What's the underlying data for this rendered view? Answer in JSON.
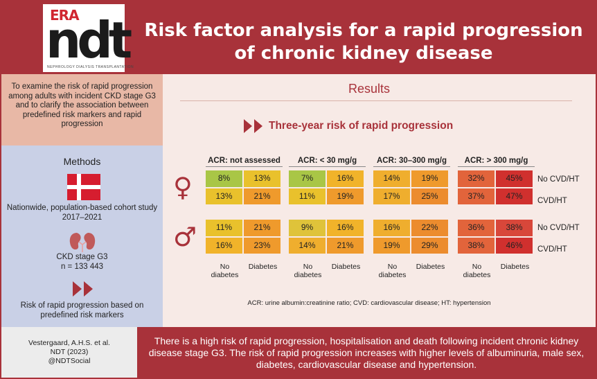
{
  "logo": {
    "era": "ERA",
    "ndt": "ndt",
    "subtitle": "NEPHROLOGY DIALYSIS TRANSPLANTATION"
  },
  "title_line1": "Risk factor analysis for a rapid progression",
  "title_line2": "of chronic kidney disease",
  "aim": "To examine the risk of rapid progression among adults with incident CKD stage G3 and to clarify the association between predefined risk markers and rapid progression",
  "methods": {
    "title": "Methods",
    "cohort": "Nationwide, population-based cohort study 2017–2021",
    "ckd": "CKD stage G3",
    "n": "n = 133 443",
    "outcome": "Risk of rapid progression based on predefined risk markers"
  },
  "results": {
    "title": "Results",
    "subtitle": "Three-year risk of rapid progression",
    "acr_groups": [
      "ACR: not assessed",
      "ACR: < 30 mg/g",
      "ACR: 30–300 mg/g",
      "ACR: > 300 mg/g"
    ],
    "row_labels": [
      "No CVD/HT",
      "CVD/HT",
      "No CVD/HT",
      "CVD/HT"
    ],
    "col_labels": [
      "No diabetes",
      "Diabetes"
    ],
    "female_symbol": "♀",
    "male_symbol": "♂",
    "female": [
      [
        [
          "8%",
          "#a9c646"
        ],
        [
          "13%",
          "#e9c12c"
        ],
        [
          "7%",
          "#a9c646"
        ],
        [
          "16%",
          "#f1b32a"
        ],
        [
          "14%",
          "#efae2e"
        ],
        [
          "19%",
          "#ef9a2c"
        ],
        [
          "32%",
          "#e2643b"
        ],
        [
          "45%",
          "#d0302e"
        ]
      ],
      [
        [
          "13%",
          "#e9c12c"
        ],
        [
          "21%",
          "#ef9a2c"
        ],
        [
          "11%",
          "#e9c12c"
        ],
        [
          "19%",
          "#ef9a2c"
        ],
        [
          "17%",
          "#efae2e"
        ],
        [
          "25%",
          "#ec8c2e"
        ],
        [
          "37%",
          "#e2643b"
        ],
        [
          "47%",
          "#d0302e"
        ]
      ]
    ],
    "male": [
      [
        [
          "11%",
          "#e9c12c"
        ],
        [
          "21%",
          "#ef9a2c"
        ],
        [
          "9%",
          "#dfc33a"
        ],
        [
          "16%",
          "#f1b32a"
        ],
        [
          "16%",
          "#efae2e"
        ],
        [
          "22%",
          "#ec8c2e"
        ],
        [
          "36%",
          "#e2643b"
        ],
        [
          "38%",
          "#d8473a"
        ]
      ],
      [
        [
          "16%",
          "#f1b32a"
        ],
        [
          "23%",
          "#ef9a2c"
        ],
        [
          "14%",
          "#efae2e"
        ],
        [
          "21%",
          "#ef9a2c"
        ],
        [
          "19%",
          "#ef9a2c"
        ],
        [
          "29%",
          "#ec8c2e"
        ],
        [
          "38%",
          "#e2643b"
        ],
        [
          "46%",
          "#d0302e"
        ]
      ]
    ],
    "footnote": "ACR: urine albumin:creatinine ratio; CVD: cardiovascular disease; HT: hypertension"
  },
  "citation": {
    "authors": "Vestergaard, A.H.S. et al.",
    "journal": "NDT (2023)",
    "handle": "@NDTSocial"
  },
  "conclusion": "There is a high risk of rapid progression, hospitalisation and death following incident chronic kidney disease stage G3. The risk of rapid progression increases with higher levels of albuminuria, male sex, diabetes, cardiovascular disease and hypertension."
}
